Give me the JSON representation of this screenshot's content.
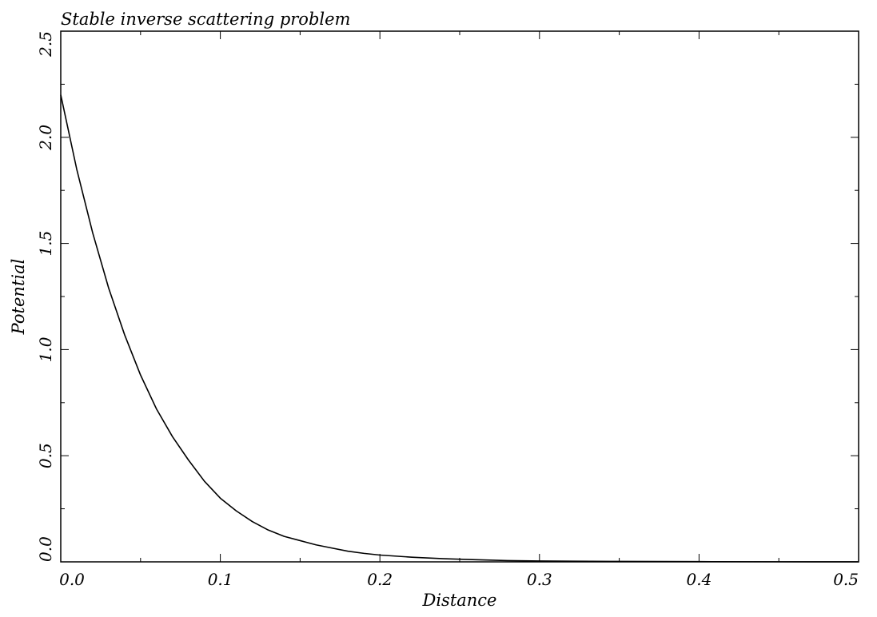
{
  "chart_data": {
    "type": "line",
    "title": "Stable inverse scattering problem",
    "xlabel": "Distance",
    "ylabel": "Potential",
    "xlim": [
      0.0,
      0.5
    ],
    "ylim": [
      0.0,
      2.5
    ],
    "x_ticks": [
      0.0,
      0.1,
      0.2,
      0.3,
      0.4,
      0.5
    ],
    "y_ticks": [
      0.0,
      0.5,
      1.0,
      1.5,
      2.0,
      2.5
    ],
    "x_tick_labels": [
      "0.0",
      "0.1",
      "0.2",
      "0.3",
      "0.4",
      "0.5"
    ],
    "y_tick_labels": [
      "0.0",
      "0.5",
      "1.0",
      "1.5",
      "2.0",
      "2.5"
    ],
    "grid": false,
    "legend": "none",
    "series": [
      {
        "color": "#000000",
        "x": [
          0.0,
          0.01,
          0.02,
          0.03,
          0.04,
          0.05,
          0.06,
          0.07,
          0.08,
          0.09,
          0.1,
          0.11,
          0.12,
          0.13,
          0.14,
          0.15,
          0.16,
          0.17,
          0.18,
          0.19,
          0.2,
          0.22,
          0.24,
          0.26,
          0.28,
          0.3,
          0.32,
          0.35,
          0.4,
          0.45,
          0.5
        ],
        "values": [
          2.2,
          1.85,
          1.55,
          1.29,
          1.07,
          0.88,
          0.72,
          0.59,
          0.48,
          0.38,
          0.3,
          0.24,
          0.19,
          0.15,
          0.12,
          0.1,
          0.08,
          0.065,
          0.05,
          0.04,
          0.032,
          0.022,
          0.015,
          0.01,
          0.006,
          0.004,
          0.003,
          0.002,
          0.001,
          0.0005,
          0.0003
        ]
      }
    ]
  }
}
